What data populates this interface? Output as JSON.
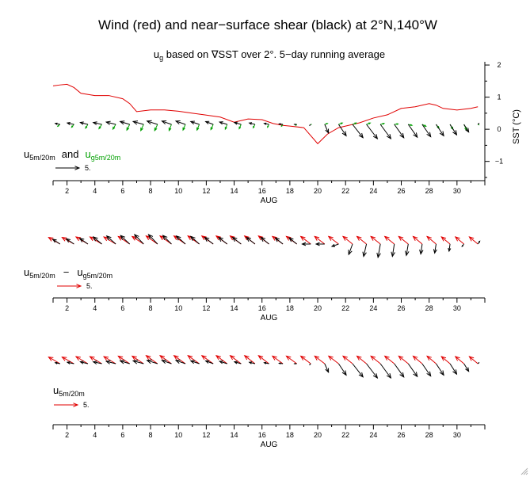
{
  "title": "Wind (red) and near−surface shear (black) at 2°N,140°W",
  "subtitle": {
    "pre": "u",
    "sub": "g",
    "post": " based on ∇SST over 2°. 5−day running average"
  },
  "colors": {
    "wind": "#e00000",
    "shear": "#000000",
    "geo_shear": "#00a000",
    "sst": "#e00000"
  },
  "x_axis": {
    "label": "AUG",
    "ticks": [
      "2",
      "4",
      "6",
      "8",
      "10",
      "12",
      "14",
      "16",
      "18",
      "20",
      "22",
      "24",
      "26",
      "28",
      "30"
    ],
    "tick_values": [
      2,
      4,
      6,
      8,
      10,
      12,
      14,
      16,
      18,
      20,
      22,
      24,
      26,
      28,
      30
    ],
    "range": [
      1,
      32
    ]
  },
  "panels": [
    {
      "legend_main": {
        "pre": "u",
        "sub": "5m/20m"
      },
      "legend_and": "and",
      "legend_geo": {
        "pre": "u",
        "sub": "g5m/20m"
      },
      "scale_value": "5."
    },
    {
      "legend_a": {
        "pre": "u",
        "sub": "5m/20m"
      },
      "legend_minus": "−",
      "legend_b": {
        "pre": "u",
        "sub": "g5m/20m"
      },
      "scale_value": "5."
    },
    {
      "legend_main": {
        "pre": "u",
        "sub": "5m/20m"
      },
      "scale_value": "5."
    }
  ],
  "chart_data": {
    "type": "line",
    "x_label": "AUG",
    "y2_label": "SST (°C)",
    "y2_ticks": [
      "2",
      "1",
      "0",
      "−1"
    ],
    "y2_tick_values": [
      2,
      1,
      0,
      -1
    ],
    "y2_range": [
      -1.6,
      2.1
    ],
    "grid": false,
    "vector_scale": 5,
    "sst_anomaly": {
      "name": "SST",
      "x": [
        1,
        1.5,
        2,
        2.5,
        3,
        4,
        5,
        6,
        6.5,
        7,
        8,
        9,
        10,
        11,
        12,
        13,
        14,
        15,
        16,
        16.8,
        17.5,
        18,
        19,
        20,
        20.7,
        21.5,
        22,
        23,
        24,
        25,
        26,
        27,
        28,
        28.5,
        29,
        30,
        31,
        31.5
      ],
      "y": [
        1.35,
        1.38,
        1.4,
        1.3,
        1.12,
        1.05,
        1.05,
        0.95,
        0.8,
        0.55,
        0.6,
        0.6,
        0.56,
        0.5,
        0.44,
        0.38,
        0.22,
        0.32,
        0.3,
        0.18,
        0.12,
        0.1,
        0.05,
        -0.45,
        -0.15,
        0.05,
        0.1,
        0.2,
        0.35,
        0.45,
        0.65,
        0.7,
        0.8,
        0.75,
        0.65,
        0.6,
        0.65,
        0.7
      ]
    },
    "days": [
      1.5,
      2.5,
      3.5,
      4.5,
      5.5,
      6.5,
      7.5,
      8.5,
      9.5,
      10.5,
      11.5,
      12.5,
      13.5,
      14.5,
      15.5,
      16.5,
      17.5,
      18.5,
      19.5,
      20.5,
      21.5,
      22.5,
      23.5,
      24.5,
      25.5,
      26.5,
      27.5,
      28.5,
      29.5,
      30.5,
      31.5
    ],
    "series": [
      {
        "name": "u5m/20m",
        "u": [
          -1.0,
          -1.4,
          -1.6,
          -1.8,
          -2.0,
          -2.0,
          -2.2,
          -2.2,
          -2.0,
          -2.0,
          -1.8,
          -1.6,
          -1.6,
          -1.4,
          -1.2,
          -1.0,
          -0.8,
          -0.5,
          -0.2,
          0.8,
          1.6,
          2.2,
          2.3,
          2.2,
          2.0,
          1.9,
          1.8,
          1.6,
          1.4,
          1.0,
          0.2
        ],
        "v": [
          0.2,
          0.3,
          0.4,
          0.4,
          0.5,
          0.6,
          0.6,
          0.7,
          0.7,
          0.7,
          0.6,
          0.6,
          0.5,
          0.4,
          0.3,
          0.2,
          0.1,
          0.0,
          -0.2,
          -1.8,
          -2.4,
          -2.8,
          -3.0,
          -3.0,
          -2.8,
          -2.7,
          -2.6,
          -2.4,
          -2.2,
          -1.6,
          0.2
        ]
      },
      {
        "name": "ug5m/20m",
        "u": [
          -0.5,
          -0.5,
          -0.5,
          -0.6,
          -0.6,
          -0.6,
          -0.6,
          -0.6,
          -0.5,
          -0.5,
          -0.5,
          -0.5,
          -0.4,
          -0.4,
          -0.4,
          -0.3,
          -0.3,
          -0.2,
          0.1,
          0.6,
          0.8,
          0.8,
          0.8,
          0.8,
          0.8,
          0.8,
          0.8,
          0.6,
          0.6,
          0.6,
          0.2
        ],
        "v": [
          -0.4,
          -0.6,
          -0.8,
          -0.9,
          -1.0,
          -1.2,
          -1.3,
          -1.3,
          -1.3,
          -1.2,
          -1.2,
          -1.1,
          -1.0,
          -0.9,
          -0.7,
          -0.6,
          -0.4,
          -0.2,
          0.0,
          0.2,
          0.3,
          0.3,
          0.3,
          0.2,
          0.1,
          -0.2,
          -0.4,
          -0.8,
          -1.0,
          -1.2,
          -0.1
        ]
      },
      {
        "name": "u5m/20m − ug5m/20m",
        "u": [
          -1.5,
          -1.6,
          -1.7,
          -1.8,
          -1.9,
          -1.9,
          -1.9,
          -1.9,
          -1.8,
          -1.9,
          -1.8,
          -1.8,
          -1.8,
          -1.8,
          -1.8,
          -1.7,
          -1.6,
          -1.6,
          -1.8,
          -1.8,
          -1.4,
          -0.8,
          -0.6,
          -0.5,
          -0.4,
          -0.4,
          -0.3,
          -0.3,
          -0.2,
          -0.4,
          0.4
        ],
        "v": [
          1.0,
          1.1,
          1.2,
          1.5,
          1.7,
          1.8,
          2.0,
          2.0,
          1.8,
          1.7,
          1.6,
          1.4,
          1.4,
          1.4,
          1.4,
          1.4,
          1.3,
          1.3,
          0.0,
          0.0,
          -0.5,
          -2.2,
          -2.6,
          -2.8,
          -2.6,
          -2.4,
          -2.1,
          -1.9,
          -1.5,
          -0.5,
          0.6
        ]
      },
      {
        "name": "wind",
        "u": [
          -2.4,
          -2.5,
          -2.5,
          -2.5,
          -2.5,
          -2.4,
          -2.4,
          -2.4,
          -2.4,
          -2.4,
          -2.4,
          -2.4,
          -2.3,
          -2.3,
          -2.2,
          -2.2,
          -2.2,
          -2.2,
          -2.1,
          -2.1,
          -2.1,
          -2.0,
          -2.0,
          -2.0,
          -2.0,
          -2.0,
          -1.9,
          -1.9,
          -1.8,
          -1.8,
          -1.8
        ],
        "v": [
          1.4,
          1.4,
          1.5,
          1.5,
          1.5,
          1.6,
          1.6,
          1.7,
          1.7,
          1.7,
          1.7,
          1.7,
          1.7,
          1.7,
          1.7,
          1.7,
          1.6,
          1.6,
          1.6,
          1.6,
          1.6,
          1.6,
          1.6,
          1.6,
          1.6,
          1.6,
          1.6,
          1.6,
          1.5,
          1.5,
          1.5
        ]
      }
    ]
  }
}
